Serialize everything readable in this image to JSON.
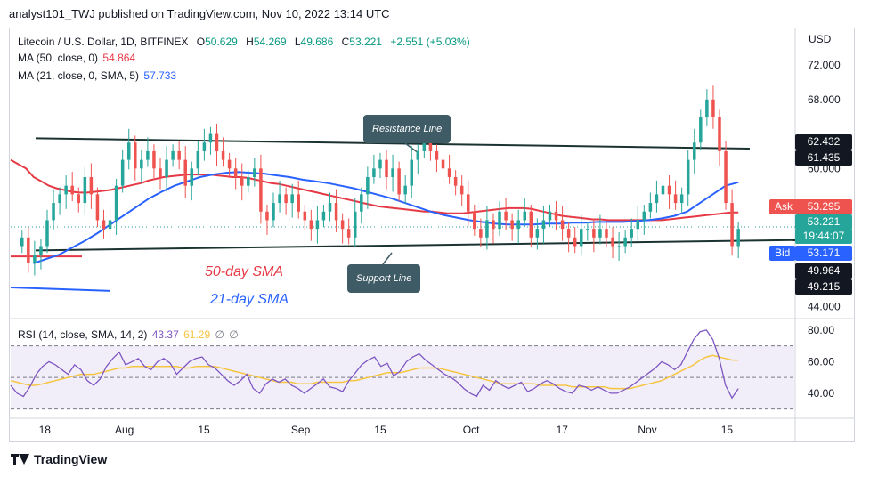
{
  "header": {
    "text": "analyst101_TWJ published on TradingView.com, Nov 10, 2022 13:14 UTC"
  },
  "legend": {
    "symbol": "Litecoin / U.S. Dollar, 1D, BITFINEX",
    "o_label": "O",
    "o": "50.629",
    "h_label": "H",
    "h": "54.269",
    "l_label": "L",
    "l": "49.686",
    "c_label": "C",
    "c": "53.221",
    "change": "+2.551 (+5.03%)",
    "ma50_label": "MA (50, close, 0)",
    "ma50_value": "54.864",
    "ma21_label": "MA (21, close, 0, SMA, 5)",
    "ma21_value": "57.733",
    "rsi_label": "RSI (14, close, SMA, 14, 2)",
    "rsi_value": "43.37",
    "rsi_ma_value": "61.29",
    "null1": "∅",
    "null2": "∅"
  },
  "annotations": {
    "resistance": "Resistance Line",
    "support": "Support Line",
    "sma50": "50-day SMA",
    "sma21": "21-day SMA"
  },
  "price_tags": {
    "currency": "USD",
    "t1": "62.432",
    "t2": "61.435",
    "ask_label": "Ask",
    "ask": "53.295",
    "last": "53.221",
    "countdown": "19:44:07",
    "bid_label": "Bid",
    "bid": "53.171",
    "t3": "49.964",
    "t4": "49.215"
  },
  "footer": {
    "brand": "TradingView"
  },
  "colors": {
    "up": "#26a69a",
    "down": "#ef5350",
    "ma50": "#e53945",
    "ma21": "#2962ff",
    "rsi": "#7e57c2",
    "rsi_ma": "#f5c542",
    "trend": "#1b3330",
    "callout": "#3f5b66"
  },
  "chart_data": [
    {
      "type": "candlestick",
      "title": "Litecoin / U.S. Dollar, 1D, BITFINEX",
      "y_ticks": [
        44,
        48,
        52,
        56,
        60,
        64,
        68,
        72
      ],
      "y_tick_labels": [
        "44.000",
        "",
        "",
        "",
        "60.000",
        "",
        "68.000",
        "72.000"
      ],
      "ylim": [
        43,
        75
      ],
      "x_tick_labels": [
        {
          "day": 18,
          "label": "18"
        },
        {
          "day": 32,
          "label": "Aug"
        },
        {
          "day": 46,
          "label": "15"
        },
        {
          "day": 63,
          "label": "Sep"
        },
        {
          "day": 77,
          "label": "15"
        },
        {
          "day": 93,
          "label": "Oct"
        },
        {
          "day": 109,
          "label": "17"
        },
        {
          "day": 124,
          "label": "Nov"
        },
        {
          "day": 138,
          "label": "15"
        }
      ],
      "x_range": [
        12,
        150
      ],
      "closes": [
        52,
        49,
        50,
        51,
        54,
        56,
        57,
        58,
        57,
        56,
        59,
        57,
        54,
        53,
        54,
        58,
        61,
        63,
        60,
        61,
        62,
        60,
        59,
        61,
        62,
        61,
        58,
        60,
        62,
        63,
        64,
        62,
        61,
        60,
        59,
        58,
        59,
        60,
        55,
        54,
        56,
        57,
        56,
        57,
        55,
        54,
        53,
        54,
        55,
        56,
        54,
        53,
        52,
        55,
        57,
        59,
        60,
        61,
        59,
        60,
        57,
        58,
        61,
        62,
        63,
        62,
        61,
        60,
        59,
        58,
        57,
        55,
        53,
        52,
        54,
        53,
        55,
        54,
        53,
        54,
        55,
        52,
        53,
        54,
        55,
        54,
        53,
        52,
        51,
        53,
        53,
        52,
        53,
        52,
        51,
        51,
        52,
        53,
        54,
        55,
        56,
        57,
        58,
        57,
        56,
        57,
        61,
        63,
        66,
        68,
        66,
        62,
        56,
        51,
        53
      ],
      "ma50": [
        61,
        60.5,
        60,
        59,
        58.5,
        58,
        57.7,
        57.5,
        57.3,
        57.2,
        57.2,
        57.3,
        57.4,
        57.5,
        57.7,
        57.9,
        58.1,
        58.3,
        58.6,
        58.8,
        59,
        59.1,
        59.2,
        59.3,
        59.3,
        59.3,
        59.3,
        59.2,
        59.1,
        59,
        59,
        58.9,
        58.7,
        58.5,
        58.3,
        58.2,
        58,
        57.8,
        57.6,
        57.4,
        57.2,
        57,
        56.8,
        56.6,
        56.4,
        56.2,
        56,
        55.8,
        55.6,
        55.5,
        55.4,
        55.3,
        55.2,
        55.1,
        55,
        55,
        54.9,
        54.8,
        54.8,
        54.8,
        54.9,
        55,
        55.1,
        55.2,
        55.3,
        55.4,
        55.4,
        55.4,
        55.3,
        55.1,
        54.9,
        54.7,
        54.5,
        54.4,
        54.3,
        54.2,
        54.1,
        54.1,
        54,
        54,
        54,
        54,
        54,
        54,
        54,
        54,
        54.1,
        54.2,
        54.3,
        54.4,
        54.5,
        54.6,
        54.7,
        54.8,
        54.9,
        54.9
      ],
      "ma21": [
        49,
        49.5,
        50,
        50.8,
        51.6,
        52.5,
        53.5,
        54.5,
        55.5,
        56.5,
        57.3,
        58,
        58.5,
        59,
        59.3,
        59.5,
        59.6,
        59.5,
        59.4,
        59.2,
        59,
        58.7,
        58.5,
        58.3,
        58,
        57.7,
        57.3,
        56.9,
        56.5,
        56,
        55.5,
        55,
        54.6,
        54.3,
        54,
        53.8,
        53.6,
        53.5,
        53.5,
        53.5,
        53.6,
        53.6,
        53.7,
        53.7,
        53.8,
        53.8,
        53.8,
        53.9,
        54,
        54.2,
        54.5,
        55,
        56,
        57,
        58,
        58.4
      ],
      "resistance": {
        "from": {
          "day": 12,
          "price": 63.5
        },
        "to": {
          "day": 142,
          "price": 62.3
        }
      },
      "support": {
        "from": {
          "day": 12,
          "price": 50.5
        },
        "to": {
          "day": 150,
          "price": 51.7
        }
      }
    },
    {
      "type": "line",
      "title": "RSI (14, close, SMA, 14, 2)",
      "y_ticks": [
        40,
        60,
        80
      ],
      "y_tick_labels": [
        "40.00",
        "60.00",
        "80.00"
      ],
      "ylim": [
        27,
        85
      ],
      "band": [
        30,
        70
      ],
      "rsi": [
        45,
        40,
        38,
        44,
        52,
        57,
        60,
        58,
        55,
        52,
        58,
        55,
        48,
        45,
        49,
        57,
        62,
        66,
        58,
        60,
        62,
        57,
        55,
        60,
        62,
        59,
        52,
        56,
        60,
        62,
        63,
        58,
        56,
        52,
        48,
        45,
        48,
        52,
        43,
        40,
        46,
        49,
        47,
        49,
        45,
        43,
        40,
        43,
        46,
        49,
        44,
        43,
        41,
        48,
        53,
        58,
        61,
        63,
        57,
        59,
        51,
        54,
        60,
        63,
        65,
        61,
        58,
        55,
        52,
        50,
        47,
        43,
        40,
        38,
        45,
        42,
        48,
        45,
        43,
        45,
        47,
        41,
        43,
        46,
        48,
        46,
        43,
        41,
        40,
        45,
        44,
        42,
        44,
        42,
        40,
        40,
        42,
        44,
        47,
        50,
        53,
        56,
        60,
        58,
        55,
        58,
        66,
        74,
        79,
        80,
        74,
        62,
        45,
        37,
        43
      ],
      "rsi_ma": [
        48,
        47,
        46,
        45,
        45,
        46,
        47,
        48,
        49,
        50,
        51,
        52,
        52,
        52,
        53,
        54,
        55,
        56,
        56,
        57,
        57,
        57,
        57,
        57,
        57,
        57,
        57,
        56,
        56,
        57,
        57,
        57,
        57,
        56,
        55,
        54,
        53,
        52,
        51,
        50,
        49,
        48,
        47,
        47,
        47,
        46,
        46,
        46,
        47,
        47,
        47,
        47,
        47,
        48,
        48,
        49,
        50,
        51,
        52,
        53,
        53,
        53,
        54,
        55,
        56,
        56,
        56,
        56,
        55,
        54,
        53,
        52,
        51,
        50,
        49,
        48,
        47,
        46,
        46,
        46,
        46,
        46,
        46,
        45,
        45,
        45,
        45,
        45,
        44,
        44,
        44,
        44,
        44,
        44,
        43,
        43,
        43,
        43,
        44,
        45,
        46,
        47,
        48,
        50,
        52,
        54,
        56,
        58,
        61,
        63,
        64,
        63,
        62,
        61,
        61
      ]
    }
  ]
}
